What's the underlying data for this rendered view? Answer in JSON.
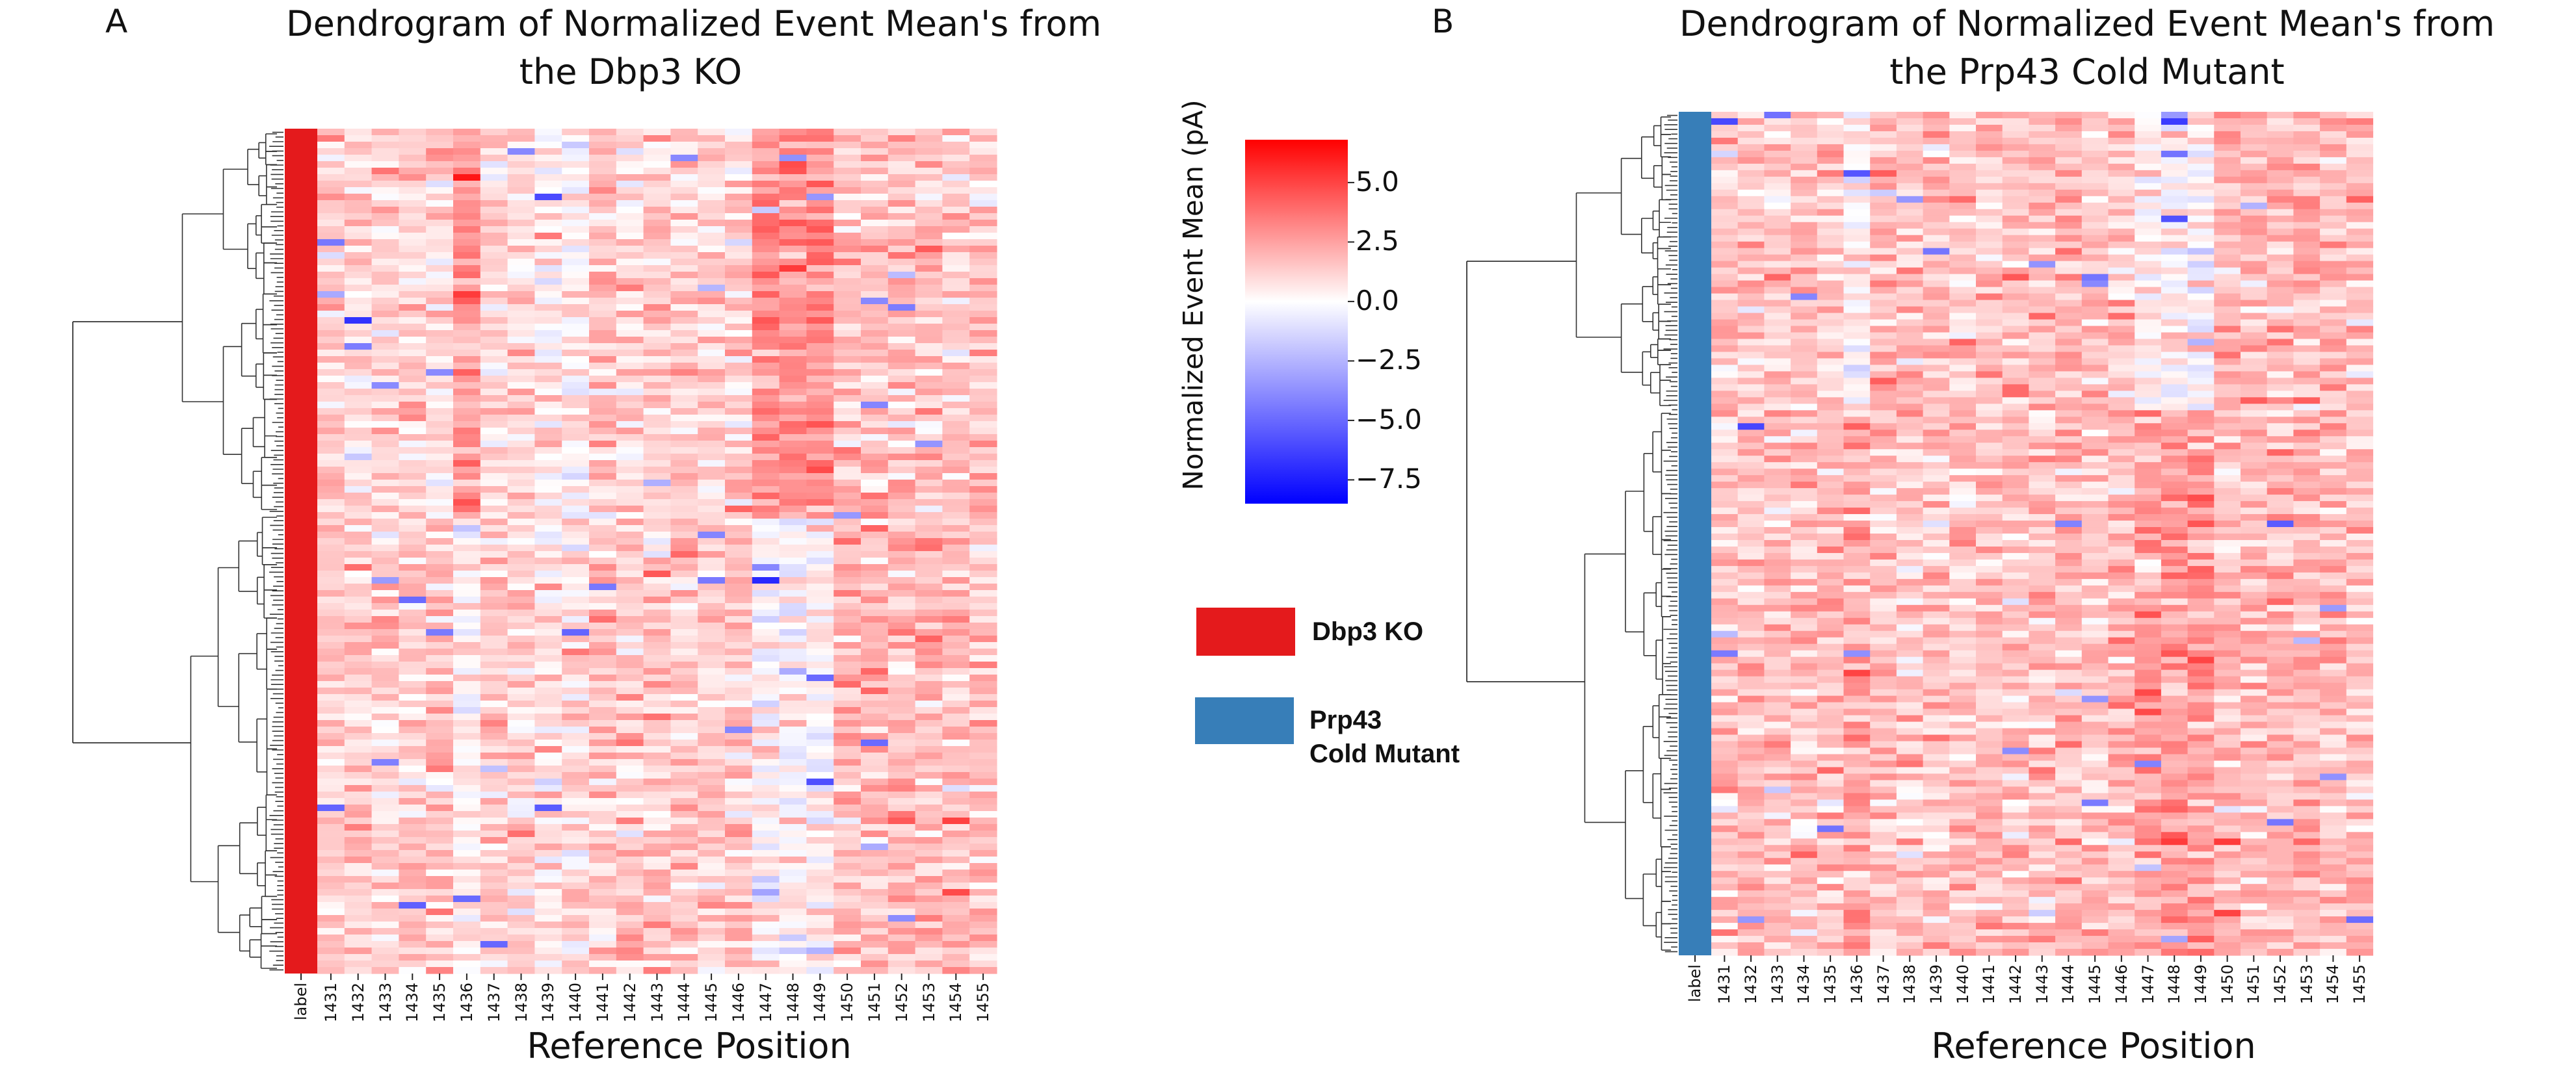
{
  "panels": [
    {
      "letter": "A",
      "title_line1": "Dendrogram of Normalized Event Mean's  from",
      "title_line2": "the Dbp3 KO",
      "xlabel": "Reference Position",
      "label_color": "#e41a1c"
    },
    {
      "letter": "B",
      "title_line1": "Dendrogram of Normalized Event Mean's  from",
      "title_line2": "the Prp43 Cold Mutant",
      "xlabel": "Reference Position",
      "label_color": "#377eb8"
    }
  ],
  "colorbar": {
    "label": "Normalized Event Mean (pA)",
    "ticks": [
      "5.0",
      "2.5",
      "0.0",
      "−2.5",
      "−5.0",
      "−7.5"
    ],
    "vmin": -8.5,
    "vmax": 6.8,
    "colors": [
      "#0000ff",
      "#ffffff",
      "#ff0000"
    ]
  },
  "legend": [
    {
      "label": "Dbp3 KO",
      "color": "#e41a1c"
    },
    {
      "label_line1": "Prp43",
      "label_line2": "Cold Mutant",
      "color": "#377eb8"
    }
  ],
  "chart_data": [
    {
      "type": "heatmap",
      "title": "Dendrogram of Normalized Event Mean's  from the Dbp3 KO",
      "xlabel": "Reference Position",
      "categories": [
        "label",
        "1431",
        "1432",
        "1433",
        "1434",
        "1435",
        "1436",
        "1437",
        "1438",
        "1439",
        "1440",
        "1441",
        "1442",
        "1443",
        "1444",
        "1445",
        "1446",
        "1447",
        "1448",
        "1449",
        "1450",
        "1451",
        "1452",
        "1453",
        "1454",
        "1455"
      ],
      "row_label": "Dbp3 KO",
      "approx_cluster_column_means": [
        {
          "rows": "top cluster",
          "values": [
            1.2,
            1.0,
            1.0,
            1.2,
            1.0,
            2.8,
            1.0,
            1.0,
            0.6,
            0.4,
            1.4,
            1.0,
            1.2,
            1.2,
            1.2,
            1.2,
            3.0,
            3.0,
            3.0,
            1.6,
            1.6,
            1.6,
            1.6,
            1.4,
            1.6
          ]
        },
        {
          "rows": "bottom cluster",
          "values": [
            1.2,
            1.2,
            1.2,
            1.4,
            1.6,
            0.1,
            1.4,
            1.2,
            0.8,
            0.8,
            1.4,
            1.4,
            1.4,
            1.4,
            1.2,
            1.4,
            0.2,
            0.2,
            0.2,
            1.8,
            1.8,
            1.8,
            1.8,
            1.6,
            1.8
          ]
        }
      ],
      "value_range": [
        -8.5,
        6.8
      ]
    },
    {
      "type": "heatmap",
      "title": "Dendrogram of Normalized Event Mean's  from the Prp43 Cold Mutant",
      "xlabel": "Reference Position",
      "categories": [
        "label",
        "1431",
        "1432",
        "1433",
        "1434",
        "1435",
        "1436",
        "1437",
        "1438",
        "1439",
        "1440",
        "1441",
        "1442",
        "1443",
        "1444",
        "1445",
        "1446",
        "1447",
        "1448",
        "1449",
        "1450",
        "1451",
        "1452",
        "1453",
        "1454",
        "1455"
      ],
      "row_label": "Prp43 Cold Mutant",
      "approx_cluster_column_means": [
        {
          "rows": "top cluster",
          "values": [
            1.4,
            1.4,
            1.4,
            1.6,
            1.4,
            0.4,
            1.8,
            1.6,
            1.4,
            1.6,
            1.6,
            1.6,
            1.6,
            1.8,
            1.6,
            1.6,
            0.2,
            0.2,
            0.2,
            2.0,
            2.0,
            1.8,
            1.8,
            1.8,
            1.8
          ]
        },
        {
          "rows": "bottom cluster",
          "values": [
            1.6,
            1.6,
            1.6,
            1.6,
            1.6,
            2.2,
            1.6,
            1.4,
            1.4,
            1.6,
            1.6,
            1.6,
            1.6,
            1.8,
            1.6,
            1.8,
            2.6,
            2.6,
            2.6,
            1.8,
            1.8,
            1.8,
            1.8,
            1.8,
            1.8
          ]
        }
      ],
      "value_range": [
        -8.5,
        6.8
      ]
    }
  ]
}
